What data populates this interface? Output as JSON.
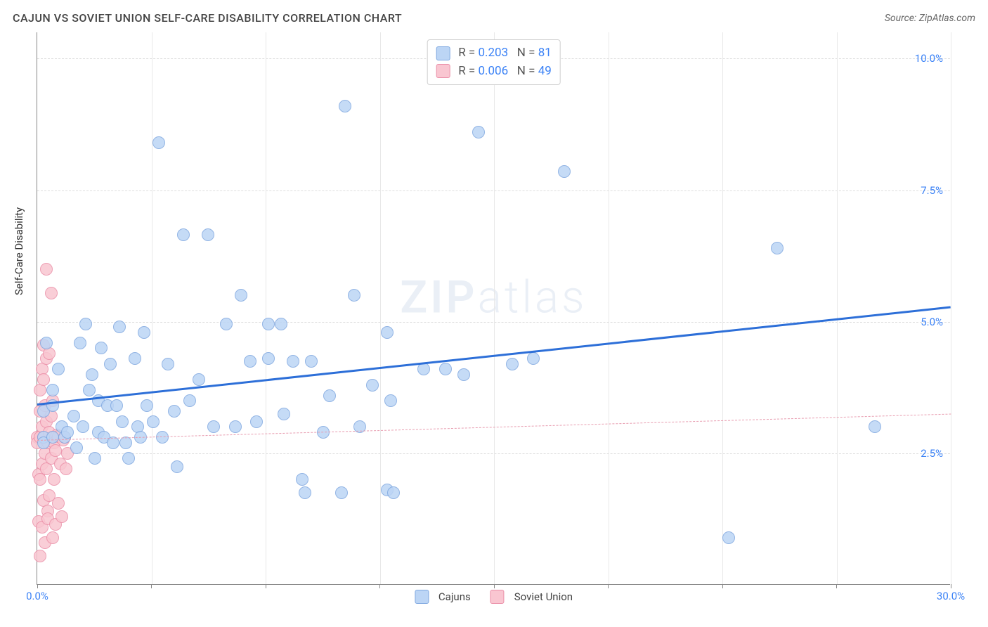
{
  "header": {
    "title": "CAJUN VS SOVIET UNION SELF-CARE DISABILITY CORRELATION CHART",
    "source": "Source: ZipAtlas.com"
  },
  "chart": {
    "type": "scatter",
    "ylabel": "Self-Care Disability",
    "watermark": "ZIPatlas",
    "background_color": "#ffffff",
    "grid_color": "#dddddd",
    "xlim": [
      0,
      30
    ],
    "ylim": [
      0,
      10.5
    ],
    "xtick_positions": [
      0,
      3.75,
      7.5,
      11.25,
      15,
      18.75,
      22.5,
      26.25,
      30
    ],
    "xtick_labels": [
      "0.0%",
      "",
      "",
      "",
      "",
      "",
      "",
      "",
      "30.0%"
    ],
    "ytick_positions": [
      2.5,
      5.0,
      7.5,
      10.0
    ],
    "ytick_labels": [
      "2.5%",
      "5.0%",
      "7.5%",
      "10.0%"
    ],
    "tick_label_color": "#3b82f6",
    "tick_label_fontsize": 15,
    "series": [
      {
        "name": "Cajuns",
        "marker_fill": "#bcd5f5",
        "marker_stroke": "#7fa8e0",
        "marker_radius": 9,
        "marker_opacity": 0.85,
        "trend": {
          "x0": 0,
          "y0": 3.45,
          "x1": 30,
          "y1": 5.3,
          "color": "#2d6fd8",
          "width": 3,
          "dash": "solid"
        },
        "points": [
          [
            0.2,
            2.8
          ],
          [
            0.2,
            3.3
          ],
          [
            0.2,
            2.7
          ],
          [
            0.3,
            4.6
          ],
          [
            0.5,
            3.7
          ],
          [
            0.5,
            2.8
          ],
          [
            0.5,
            3.4
          ],
          [
            0.7,
            4.1
          ],
          [
            0.8,
            3.0
          ],
          [
            0.9,
            2.8
          ],
          [
            1.0,
            2.9
          ],
          [
            1.2,
            3.2
          ],
          [
            1.3,
            2.6
          ],
          [
            1.4,
            4.6
          ],
          [
            1.5,
            3.0
          ],
          [
            1.6,
            4.95
          ],
          [
            1.7,
            3.7
          ],
          [
            1.8,
            4.0
          ],
          [
            1.9,
            2.4
          ],
          [
            2.0,
            3.5
          ],
          [
            2.0,
            2.9
          ],
          [
            2.1,
            4.5
          ],
          [
            2.2,
            2.8
          ],
          [
            2.3,
            3.4
          ],
          [
            2.4,
            4.2
          ],
          [
            2.5,
            2.7
          ],
          [
            2.6,
            3.4
          ],
          [
            2.7,
            4.9
          ],
          [
            2.8,
            3.1
          ],
          [
            2.9,
            2.7
          ],
          [
            3.0,
            2.4
          ],
          [
            3.2,
            4.3
          ],
          [
            3.3,
            3.0
          ],
          [
            3.4,
            2.8
          ],
          [
            3.5,
            4.8
          ],
          [
            3.6,
            3.4
          ],
          [
            3.8,
            3.1
          ],
          [
            4.0,
            8.4
          ],
          [
            4.1,
            2.8
          ],
          [
            4.3,
            4.2
          ],
          [
            4.5,
            3.3
          ],
          [
            4.6,
            2.25
          ],
          [
            4.8,
            6.65
          ],
          [
            5.0,
            3.5
          ],
          [
            5.3,
            3.9
          ],
          [
            5.6,
            6.65
          ],
          [
            5.8,
            3.0
          ],
          [
            6.2,
            4.95
          ],
          [
            6.5,
            3.0
          ],
          [
            6.7,
            5.5
          ],
          [
            7.0,
            4.25
          ],
          [
            7.2,
            3.1
          ],
          [
            7.6,
            4.95
          ],
          [
            7.6,
            4.3
          ],
          [
            8.0,
            4.95
          ],
          [
            8.1,
            3.25
          ],
          [
            8.4,
            4.25
          ],
          [
            8.7,
            2.0
          ],
          [
            8.8,
            1.75
          ],
          [
            9.0,
            4.25
          ],
          [
            9.4,
            2.9
          ],
          [
            9.6,
            3.6
          ],
          [
            10.0,
            1.75
          ],
          [
            10.1,
            9.1
          ],
          [
            10.4,
            5.5
          ],
          [
            10.6,
            3.0
          ],
          [
            11.0,
            3.8
          ],
          [
            11.5,
            4.8
          ],
          [
            11.5,
            1.8
          ],
          [
            11.6,
            3.5
          ],
          [
            11.7,
            1.75
          ],
          [
            12.7,
            4.1
          ],
          [
            13.4,
            4.1
          ],
          [
            14.0,
            4.0
          ],
          [
            14.5,
            8.6
          ],
          [
            15.6,
            4.2
          ],
          [
            16.3,
            4.3
          ],
          [
            17.3,
            7.85
          ],
          [
            22.7,
            0.9
          ],
          [
            24.3,
            6.4
          ],
          [
            27.5,
            3.0
          ]
        ]
      },
      {
        "name": "Soviet Union",
        "marker_fill": "#f9c6d1",
        "marker_stroke": "#eb8fa8",
        "marker_radius": 9,
        "marker_opacity": 0.85,
        "trend": {
          "x0": 0,
          "y0": 2.75,
          "x1": 30,
          "y1": 3.25,
          "color": "#e89db0",
          "width": 1.6,
          "dash": "dashed"
        },
        "points": [
          [
            0.0,
            2.8
          ],
          [
            0.0,
            2.7
          ],
          [
            0.05,
            1.2
          ],
          [
            0.05,
            2.1
          ],
          [
            0.1,
            0.55
          ],
          [
            0.1,
            3.3
          ],
          [
            0.1,
            2.0
          ],
          [
            0.1,
            2.8
          ],
          [
            0.1,
            3.7
          ],
          [
            0.15,
            1.1
          ],
          [
            0.15,
            2.3
          ],
          [
            0.15,
            3.0
          ],
          [
            0.15,
            4.1
          ],
          [
            0.2,
            3.9
          ],
          [
            0.2,
            2.8
          ],
          [
            0.2,
            1.6
          ],
          [
            0.2,
            4.55
          ],
          [
            0.25,
            2.5
          ],
          [
            0.25,
            3.4
          ],
          [
            0.25,
            0.8
          ],
          [
            0.3,
            6.0
          ],
          [
            0.3,
            2.2
          ],
          [
            0.3,
            4.3
          ],
          [
            0.3,
            3.1
          ],
          [
            0.35,
            2.7
          ],
          [
            0.35,
            1.4
          ],
          [
            0.35,
            1.25
          ],
          [
            0.4,
            4.4
          ],
          [
            0.4,
            2.9
          ],
          [
            0.4,
            1.7
          ],
          [
            0.45,
            5.55
          ],
          [
            0.45,
            2.4
          ],
          [
            0.45,
            3.2
          ],
          [
            0.5,
            2.8
          ],
          [
            0.5,
            3.5
          ],
          [
            0.5,
            0.9
          ],
          [
            0.55,
            2.0
          ],
          [
            0.55,
            2.7
          ],
          [
            0.6,
            2.55
          ],
          [
            0.6,
            1.15
          ],
          [
            0.65,
            2.85
          ],
          [
            0.7,
            1.55
          ],
          [
            0.7,
            2.82
          ],
          [
            0.75,
            2.3
          ],
          [
            0.8,
            1.3
          ],
          [
            0.85,
            2.75
          ],
          [
            0.9,
            2.8
          ],
          [
            0.95,
            2.2
          ],
          [
            1.0,
            2.5
          ]
        ]
      }
    ],
    "legend_top": [
      {
        "swatch": "#bcd5f5",
        "swatch_border": "#7fa8e0",
        "r_label": "R  = ",
        "r_val": "0.203",
        "n_label": "N  = ",
        "n_val": "81"
      },
      {
        "swatch": "#f9c6d1",
        "swatch_border": "#eb8fa8",
        "r_label": "R  = ",
        "r_val": "0.006",
        "n_label": "N  = ",
        "n_val": "49"
      }
    ],
    "legend_bottom": [
      {
        "swatch": "#bcd5f5",
        "swatch_border": "#7fa8e0",
        "label": "Cajuns"
      },
      {
        "swatch": "#f9c6d1",
        "swatch_border": "#eb8fa8",
        "label": "Soviet Union"
      }
    ]
  }
}
